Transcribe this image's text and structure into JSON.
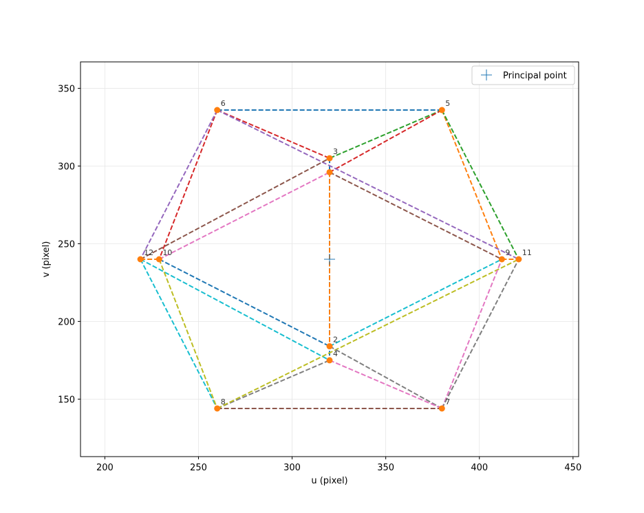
{
  "chart_data": {
    "type": "scatter",
    "xlabel": "u (pixel)",
    "ylabel": "v (pixel)",
    "xlim": [
      187,
      453
    ],
    "ylim": [
      113,
      367
    ],
    "xticks": [
      200,
      250,
      300,
      350,
      400,
      450
    ],
    "yticks": [
      150,
      200,
      250,
      300,
      350
    ],
    "grid": true,
    "legend": {
      "position": "top-right",
      "entries": [
        "Principal point"
      ]
    },
    "principal_point": {
      "u": 320,
      "v": 240
    },
    "points": [
      {
        "id": "2",
        "u": 320,
        "v": 184
      },
      {
        "id": "3",
        "u": 320,
        "v": 305
      },
      {
        "id": "4",
        "u": 320,
        "v": 175
      },
      {
        "id": "5",
        "u": 380,
        "v": 336
      },
      {
        "id": "6",
        "u": 260,
        "v": 336
      },
      {
        "id": "7",
        "u": 380,
        "v": 144
      },
      {
        "id": "8",
        "u": 260,
        "v": 144
      },
      {
        "id": "9",
        "u": 412,
        "v": 240
      },
      {
        "id": "10",
        "u": 229,
        "v": 240
      },
      {
        "id": "11",
        "u": 421,
        "v": 240
      },
      {
        "id": "12",
        "u": 219,
        "v": 240
      },
      {
        "id": "",
        "u": 320,
        "v": 296
      }
    ],
    "edges": [
      {
        "a": [
          320,
          305
        ],
        "b": [
          320,
          175
        ],
        "color": "#1f77b4"
      },
      {
        "a": [
          320,
          296
        ],
        "b": [
          320,
          184
        ],
        "color": "#ff7f0e"
      },
      {
        "a": [
          260,
          336
        ],
        "b": [
          380,
          336
        ],
        "color": "#1f77b4"
      },
      {
        "a": [
          380,
          336
        ],
        "b": [
          412,
          240
        ],
        "color": "#ff7f0e"
      },
      {
        "a": [
          380,
          336
        ],
        "b": [
          421,
          240
        ],
        "color": "#2ca02c"
      },
      {
        "a": [
          380,
          336
        ],
        "b": [
          320,
          305
        ],
        "color": "#2ca02c"
      },
      {
        "a": [
          380,
          336
        ],
        "b": [
          320,
          296
        ],
        "color": "#d62728"
      },
      {
        "a": [
          260,
          336
        ],
        "b": [
          320,
          305
        ],
        "color": "#d62728"
      },
      {
        "a": [
          260,
          336
        ],
        "b": [
          229,
          240
        ],
        "color": "#d62728"
      },
      {
        "a": [
          260,
          336
        ],
        "b": [
          219,
          240
        ],
        "color": "#9467bd"
      },
      {
        "a": [
          260,
          336
        ],
        "b": [
          421,
          240
        ],
        "color": "#9467bd"
      },
      {
        "a": [
          219,
          240
        ],
        "b": [
          320,
          305
        ],
        "color": "#8c564b"
      },
      {
        "a": [
          320,
          296
        ],
        "b": [
          412,
          240
        ],
        "color": "#8c564b"
      },
      {
        "a": [
          229,
          240
        ],
        "b": [
          320,
          296
        ],
        "color": "#e377c2"
      },
      {
        "a": [
          229,
          240
        ],
        "b": [
          320,
          184
        ],
        "color": "#1f77b4"
      },
      {
        "a": [
          219,
          240
        ],
        "b": [
          229,
          240
        ],
        "color": "#ff7f0e"
      },
      {
        "a": [
          219,
          240
        ],
        "b": [
          320,
          175
        ],
        "color": "#17becf"
      },
      {
        "a": [
          219,
          240
        ],
        "b": [
          260,
          144
        ],
        "color": "#17becf"
      },
      {
        "a": [
          229,
          240
        ],
        "b": [
          260,
          144
        ],
        "color": "#bcbd22"
      },
      {
        "a": [
          260,
          144
        ],
        "b": [
          380,
          144
        ],
        "color": "#8c564b"
      },
      {
        "a": [
          260,
          144
        ],
        "b": [
          320,
          175
        ],
        "color": "#7f7f7f"
      },
      {
        "a": [
          260,
          144
        ],
        "b": [
          421,
          240
        ],
        "color": "#bcbd22"
      },
      {
        "a": [
          320,
          184
        ],
        "b": [
          412,
          240
        ],
        "color": "#17becf"
      },
      {
        "a": [
          320,
          184
        ],
        "b": [
          380,
          144
        ],
        "color": "#7f7f7f"
      },
      {
        "a": [
          320,
          175
        ],
        "b": [
          380,
          144
        ],
        "color": "#e377c2"
      },
      {
        "a": [
          380,
          144
        ],
        "b": [
          412,
          240
        ],
        "color": "#e377c2"
      },
      {
        "a": [
          380,
          144
        ],
        "b": [
          421,
          240
        ],
        "color": "#7f7f7f"
      },
      {
        "a": [
          412,
          240
        ],
        "b": [
          421,
          240
        ],
        "color": "#ff7f0e"
      }
    ]
  },
  "colors": {
    "point": "#ff7f0e",
    "principal": "#1f77b4",
    "grid": "#e6e6e6",
    "axis": "#000000"
  }
}
